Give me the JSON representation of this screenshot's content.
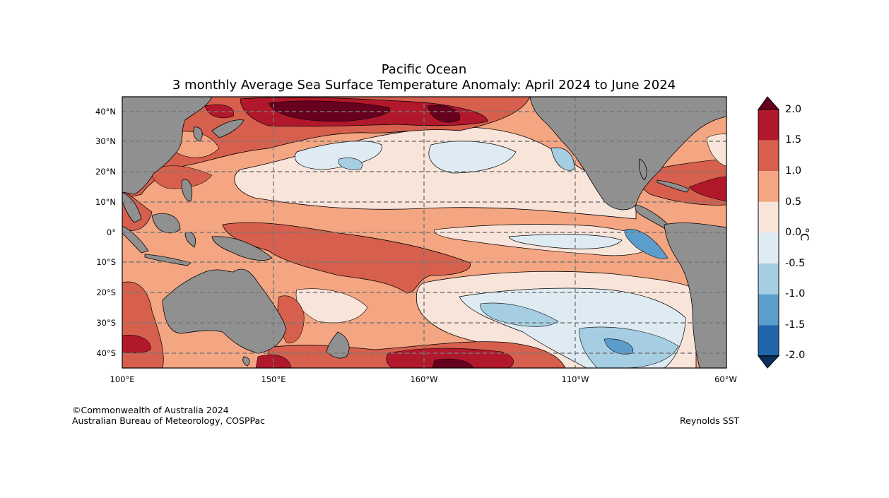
{
  "title": {
    "line1": "Pacific Ocean",
    "line2": "3 monthly Average Sea Surface Temperature Anomaly: April 2024 to June 2024"
  },
  "map": {
    "lat_labels": [
      "40°N",
      "30°N",
      "20°N",
      "10°N",
      "0°",
      "10°S",
      "20°S",
      "30°S",
      "40°S"
    ],
    "lon_labels": [
      "100°E",
      "150°E",
      "160°W",
      "110°W",
      "60°W"
    ],
    "lon_range": [
      100,
      300
    ],
    "lat_range": [
      -45,
      45
    ],
    "graticule": "dashed grey"
  },
  "colorbar": {
    "unit": "°C",
    "ticks": [
      "2.0",
      "1.5",
      "1.0",
      "0.5",
      "0.0",
      "-0.5",
      "-1.0",
      "-1.5",
      "-2.0"
    ],
    "colors": {
      "above_2": "#67001f",
      "1.5_to_2": "#b2182b",
      "1_to_1.5": "#d6604d",
      "0.5_to_1": "#f4a582",
      "0_to_0.5": "#f9e4da",
      "-0.5_to_0": "#deebf2",
      "-1_to_-0.5": "#a6cee3",
      "-1.5_to_-1": "#5b9ecb",
      "-2_to_-1.5": "#2166ac",
      "below_-2": "#0b2f5e",
      "land": "#909090"
    }
  },
  "credits": {
    "line1": "©Commonwealth of Australia 2024",
    "line2": "Australian Bureau of Meteorology, COSPPac",
    "source": "Reynolds SST"
  }
}
